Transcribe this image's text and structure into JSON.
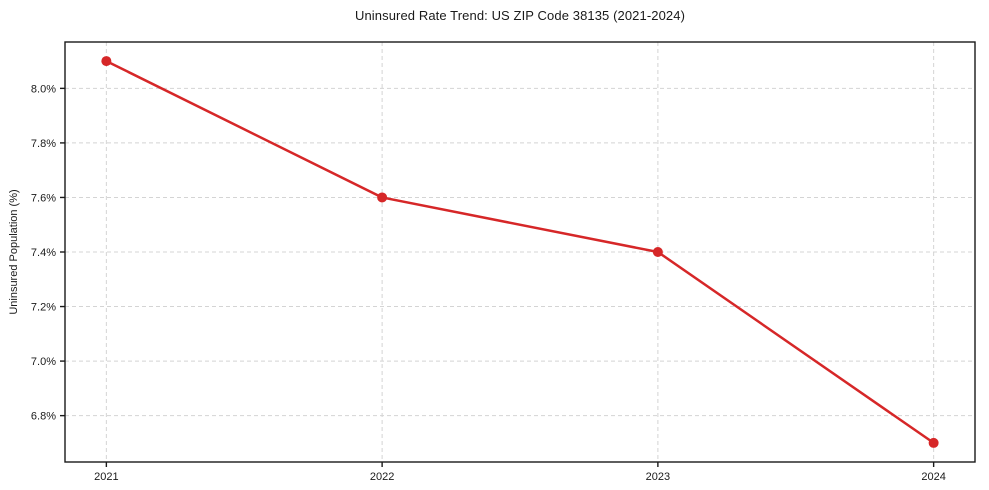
{
  "chart_data": {
    "type": "line",
    "title": "Uninsured Rate Trend: US ZIP Code 38135 (2021-2024)",
    "xlabel": "",
    "ylabel": "Uninsured Population (%)",
    "x": [
      2021,
      2022,
      2023,
      2024
    ],
    "values": [
      8.1,
      7.6,
      7.4,
      6.7
    ],
    "series_name": "Uninsured rate",
    "x_ticks": [
      2021,
      2022,
      2023,
      2024
    ],
    "x_tick_labels": [
      "2021",
      "2022",
      "2023",
      "2024"
    ],
    "y_ticks": [
      6.8,
      7.0,
      7.2,
      7.4,
      7.6,
      7.8,
      8.0
    ],
    "y_tick_labels": [
      "6.8%",
      "7.0%",
      "7.2%",
      "7.4%",
      "7.6%",
      "7.8%",
      "8.0%"
    ],
    "xlim": [
      2020.85,
      2024.15
    ],
    "ylim": [
      6.63,
      8.17
    ],
    "grid": true,
    "grid_style": "dashed",
    "legend": "none",
    "marker": "circle"
  },
  "colors": {
    "line": "#d62728",
    "marker": "#d62728",
    "grid": "#d4d4d4",
    "spine": "#1a1a1a",
    "text": "#1a1a1a",
    "background": "#ffffff"
  }
}
